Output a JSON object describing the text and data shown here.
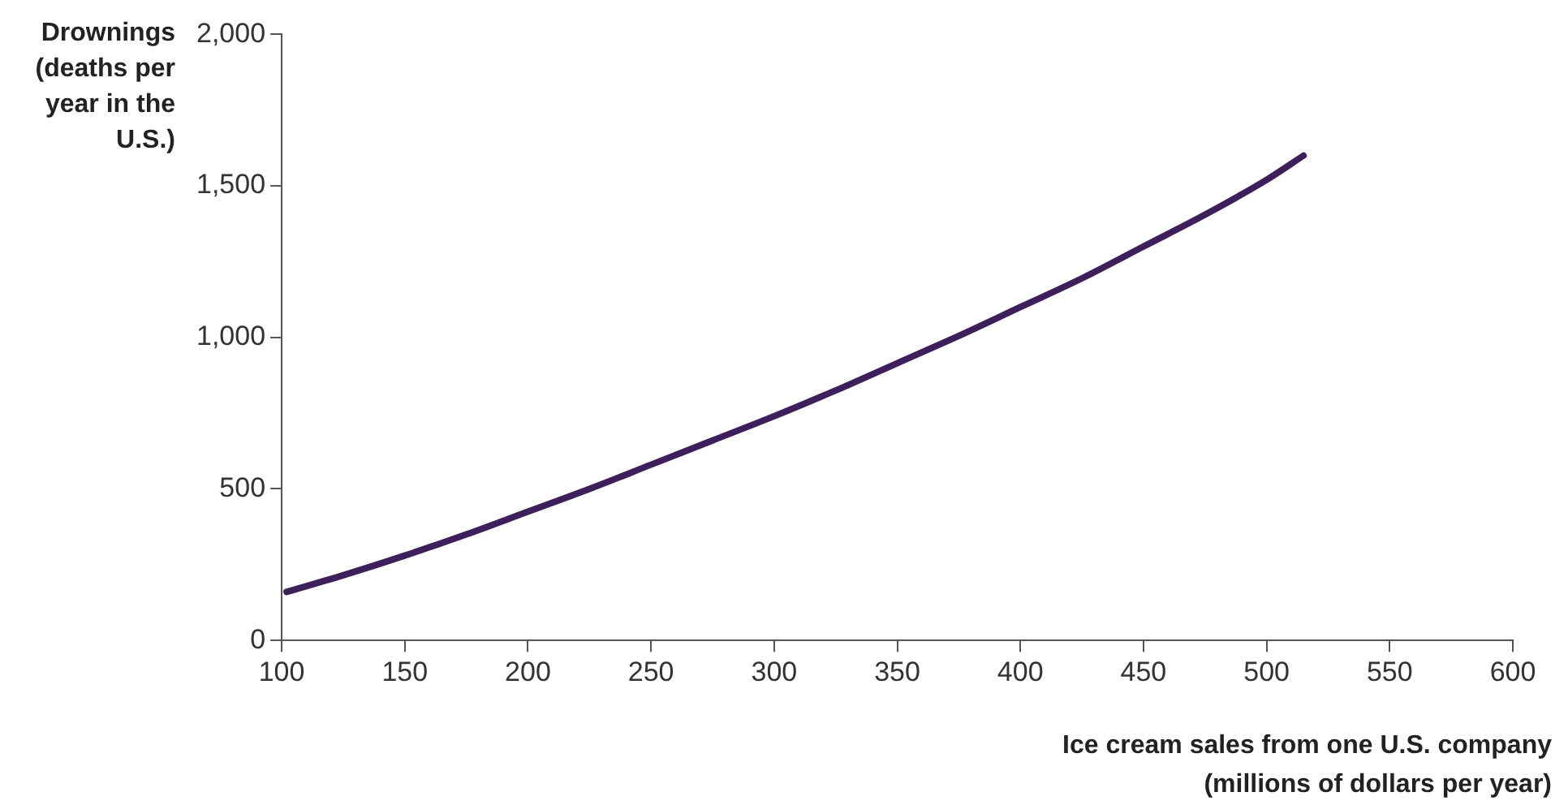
{
  "chart_data": {
    "type": "line",
    "xlabel": "Ice cream sales from one U.S. company (millions of dollars per year)",
    "ylabel": "Drownings (deaths per year in the U.S.)",
    "x": [
      102,
      125,
      150,
      175,
      200,
      225,
      250,
      275,
      300,
      325,
      350,
      375,
      400,
      425,
      450,
      475,
      500,
      515
    ],
    "series": [
      {
        "color": "#3d1f5c",
        "values": [
          160,
          215,
          280,
          350,
          425,
          500,
          580,
          660,
          740,
          825,
          915,
          1005,
          1100,
          1195,
          1300,
          1405,
          1520,
          1600
        ]
      }
    ],
    "xlim": [
      100,
      600
    ],
    "xticks": [
      100,
      150,
      200,
      250,
      300,
      350,
      400,
      450,
      500,
      550,
      600
    ],
    "ylim": [
      0,
      2000
    ],
    "yticks": [
      {
        "value": 0,
        "label": "0"
      },
      {
        "value": 500,
        "label": "500"
      },
      {
        "value": 1000,
        "label": "1,000"
      },
      {
        "value": 1500,
        "label": "1,500"
      },
      {
        "value": 2000,
        "label": "2,000"
      }
    ],
    "grid": false,
    "legend": false,
    "marker": "none",
    "line_style": "solid"
  }
}
